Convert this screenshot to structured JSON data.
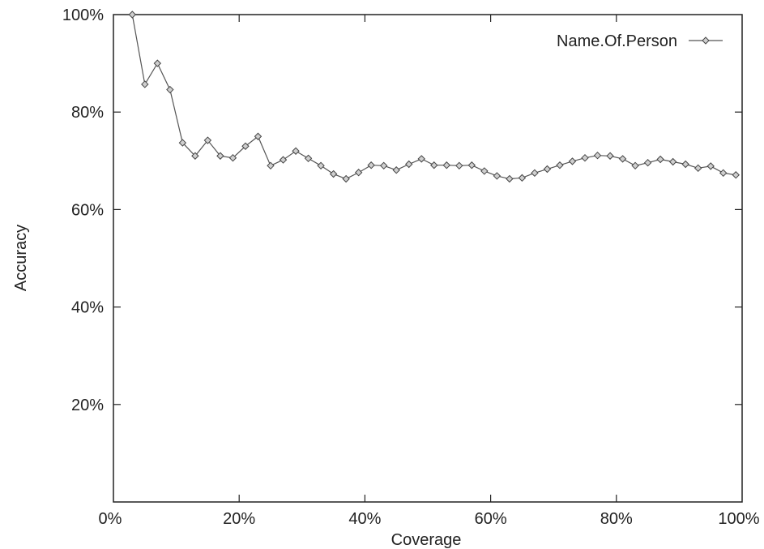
{
  "chart_data": {
    "type": "line",
    "title": "",
    "xlabel": "Coverage",
    "ylabel": "Accuracy",
    "xlim": [
      0,
      100
    ],
    "ylim": [
      0,
      100
    ],
    "x_ticks": [
      0,
      20,
      40,
      60,
      80,
      100
    ],
    "y_ticks": [
      20,
      40,
      60,
      80,
      100
    ],
    "x_tick_labels": [
      "0%",
      "20%",
      "40%",
      "60%",
      "80%",
      "100%"
    ],
    "y_tick_labels": [
      "20%",
      "40%",
      "60%",
      "80%",
      "100%"
    ],
    "grid": false,
    "legend_position": "top-right",
    "series": [
      {
        "name": "Name.Of.Person",
        "color": "#555555",
        "marker": "diamond",
        "x": [
          3,
          5,
          7,
          9,
          11,
          13,
          15,
          17,
          19,
          21,
          23,
          25,
          27,
          29,
          31,
          33,
          35,
          37,
          39,
          41,
          43,
          45,
          47,
          49,
          51,
          53,
          55,
          57,
          59,
          61,
          63,
          65,
          67,
          69,
          71,
          73,
          75,
          77,
          79,
          81,
          83,
          85,
          87,
          89,
          91,
          93,
          95,
          97,
          99
        ],
        "y": [
          100,
          85.7,
          90,
          84.6,
          73.7,
          71,
          74.2,
          71,
          70.6,
          73,
          75,
          69,
          70.2,
          72,
          70.5,
          69,
          67.3,
          66.3,
          67.6,
          69.1,
          69,
          68.1,
          69.3,
          70.4,
          69.1,
          69.1,
          69,
          69.1,
          67.9,
          66.9,
          66.3,
          66.5,
          67.5,
          68.3,
          69.1,
          69.9,
          70.6,
          71.1,
          71,
          70.4,
          69,
          69.6,
          70.3,
          69.8,
          69.3,
          68.5,
          68.9,
          67.5,
          67.1
        ]
      }
    ]
  }
}
